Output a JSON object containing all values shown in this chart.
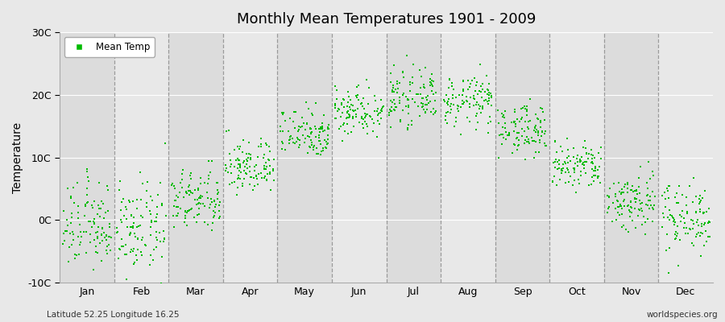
{
  "title": "Monthly Mean Temperatures 1901 - 2009",
  "ylabel": "Temperature",
  "xlabel_bottom_left": "Latitude 52.25 Longitude 16.25",
  "xlabel_bottom_right": "worldspecies.org",
  "ylim": [
    -10,
    30
  ],
  "ytick_labels": [
    "-10C",
    "0C",
    "10C",
    "20C",
    "30C"
  ],
  "ytick_values": [
    -10,
    0,
    10,
    20,
    30
  ],
  "months": [
    "Jan",
    "Feb",
    "Mar",
    "Apr",
    "May",
    "Jun",
    "Jul",
    "Aug",
    "Sep",
    "Oct",
    "Nov",
    "Dec"
  ],
  "dot_color": "#00BB00",
  "bg_color": "#E8E8E8",
  "band_colors": [
    "#DCDCDC",
    "#E8E8E8"
  ],
  "legend_label": "Mean Temp",
  "n_years": 109,
  "monthly_mean_temps": [
    -1.0,
    -1.5,
    3.0,
    8.5,
    14.0,
    17.5,
    19.5,
    19.0,
    14.5,
    8.5,
    3.0,
    0.5
  ],
  "monthly_std_temps": [
    3.5,
    3.5,
    2.5,
    2.2,
    2.0,
    2.0,
    2.0,
    2.0,
    2.0,
    2.0,
    2.5,
    2.8
  ],
  "title_fontsize": 13,
  "axis_fontsize": 9,
  "ylabel_fontsize": 10
}
